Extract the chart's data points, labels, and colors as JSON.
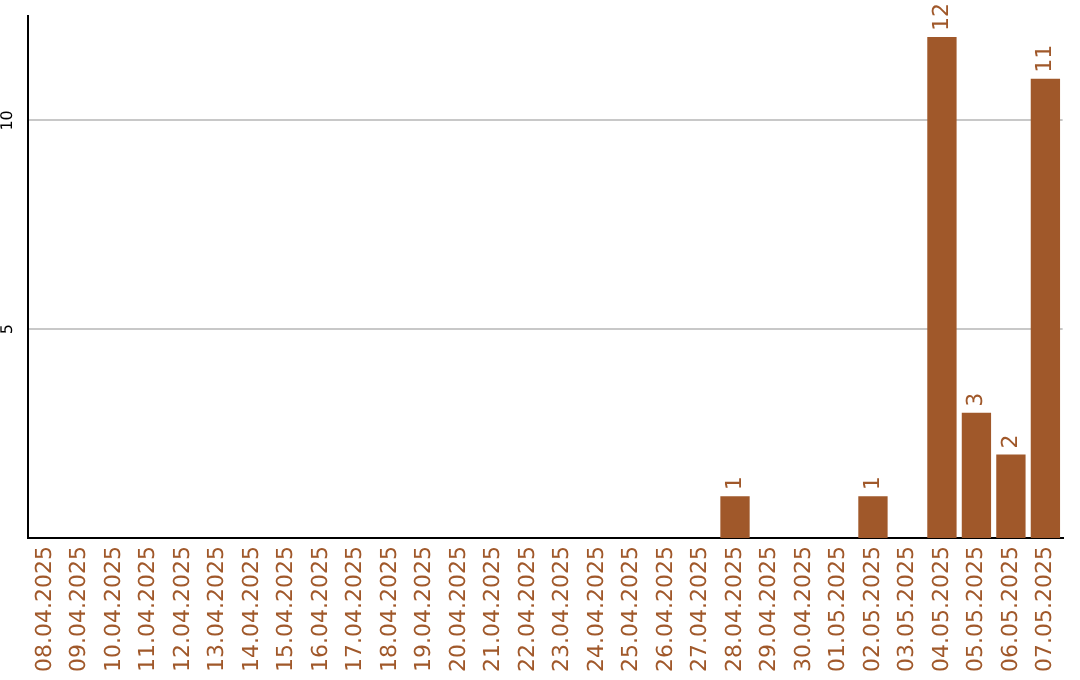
{
  "chart_data": {
    "type": "bar",
    "categories": [
      "08.04.2025",
      "09.04.2025",
      "10.04.2025",
      "11.04.2025",
      "12.04.2025",
      "13.04.2025",
      "14.04.2025",
      "15.04.2025",
      "16.04.2025",
      "17.04.2025",
      "18.04.2025",
      "19.04.2025",
      "20.04.2025",
      "21.04.2025",
      "22.04.2025",
      "23.04.2025",
      "24.04.2025",
      "25.04.2025",
      "26.04.2025",
      "27.04.2025",
      "28.04.2025",
      "29.04.2025",
      "30.04.2025",
      "01.05.2025",
      "02.05.2025",
      "03.05.2025",
      "04.05.2025",
      "05.05.2025",
      "06.05.2025",
      "07.05.2025"
    ],
    "values": [
      0,
      0,
      0,
      0,
      0,
      0,
      0,
      0,
      0,
      0,
      0,
      0,
      0,
      0,
      0,
      0,
      0,
      0,
      0,
      0,
      1,
      0,
      0,
      0,
      1,
      0,
      12,
      3,
      2,
      11
    ],
    "value_labels": [
      null,
      null,
      null,
      null,
      null,
      null,
      null,
      null,
      null,
      null,
      null,
      null,
      null,
      null,
      null,
      null,
      null,
      null,
      null,
      null,
      "1",
      null,
      null,
      null,
      "1",
      null,
      "12",
      "3",
      "2",
      "11"
    ],
    "color": "#a0582a",
    "ylim": [
      0,
      12.5
    ],
    "yticks": [
      5,
      10
    ],
    "grid": "y",
    "legend": false
  }
}
